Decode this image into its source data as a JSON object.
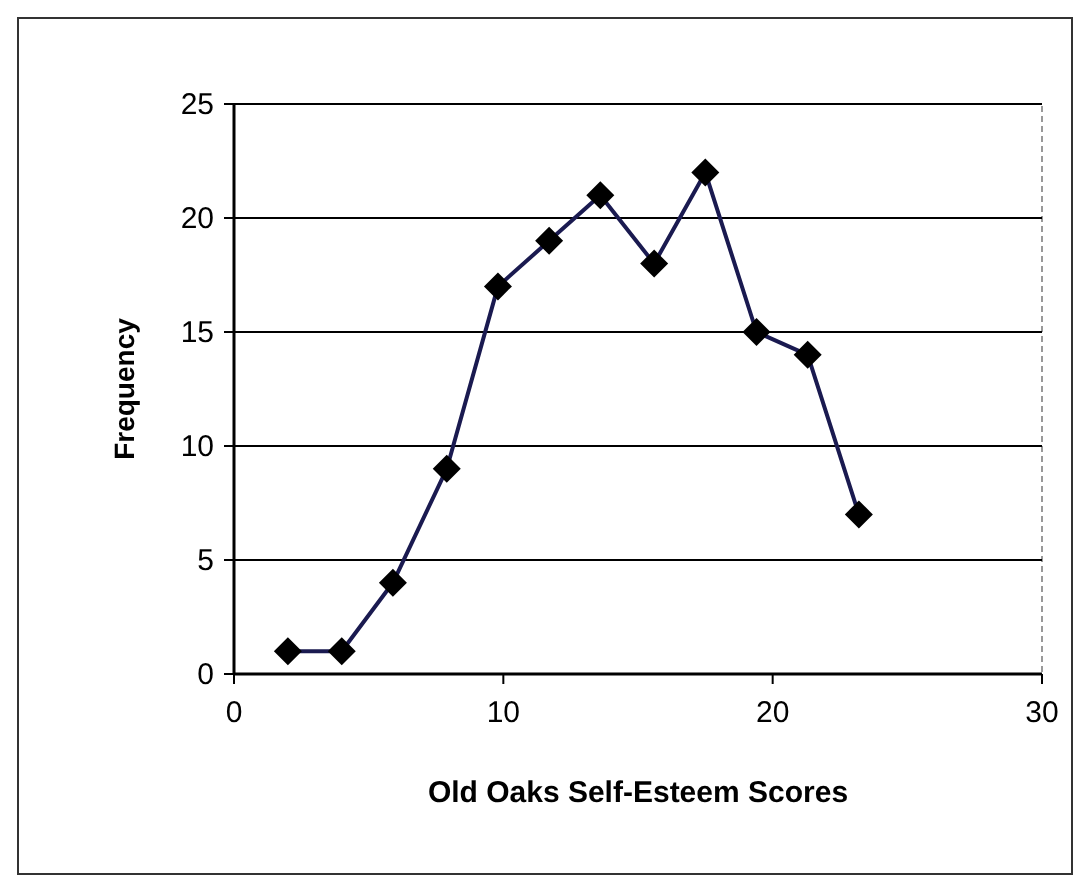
{
  "chart_data": {
    "type": "line",
    "xlabel": "Old Oaks Self-Esteem Scores",
    "ylabel": "Frequency",
    "x": [
      2,
      4,
      5.9,
      7.9,
      9.8,
      11.7,
      13.6,
      15.6,
      17.5,
      19.4,
      21.3,
      23.2
    ],
    "series": [
      {
        "color": "#1a1a50",
        "values": [
          1,
          1,
          4,
          9,
          17,
          19,
          21,
          18,
          22,
          15,
          14,
          7
        ]
      }
    ],
    "xlim": [
      0,
      30
    ],
    "xticks": [
      0,
      10,
      20,
      30
    ],
    "ylim": [
      0,
      25
    ],
    "yticks": [
      0,
      5,
      10,
      15,
      20,
      25
    ],
    "grid": "y",
    "marker": "diamond",
    "line_style": "solid"
  }
}
